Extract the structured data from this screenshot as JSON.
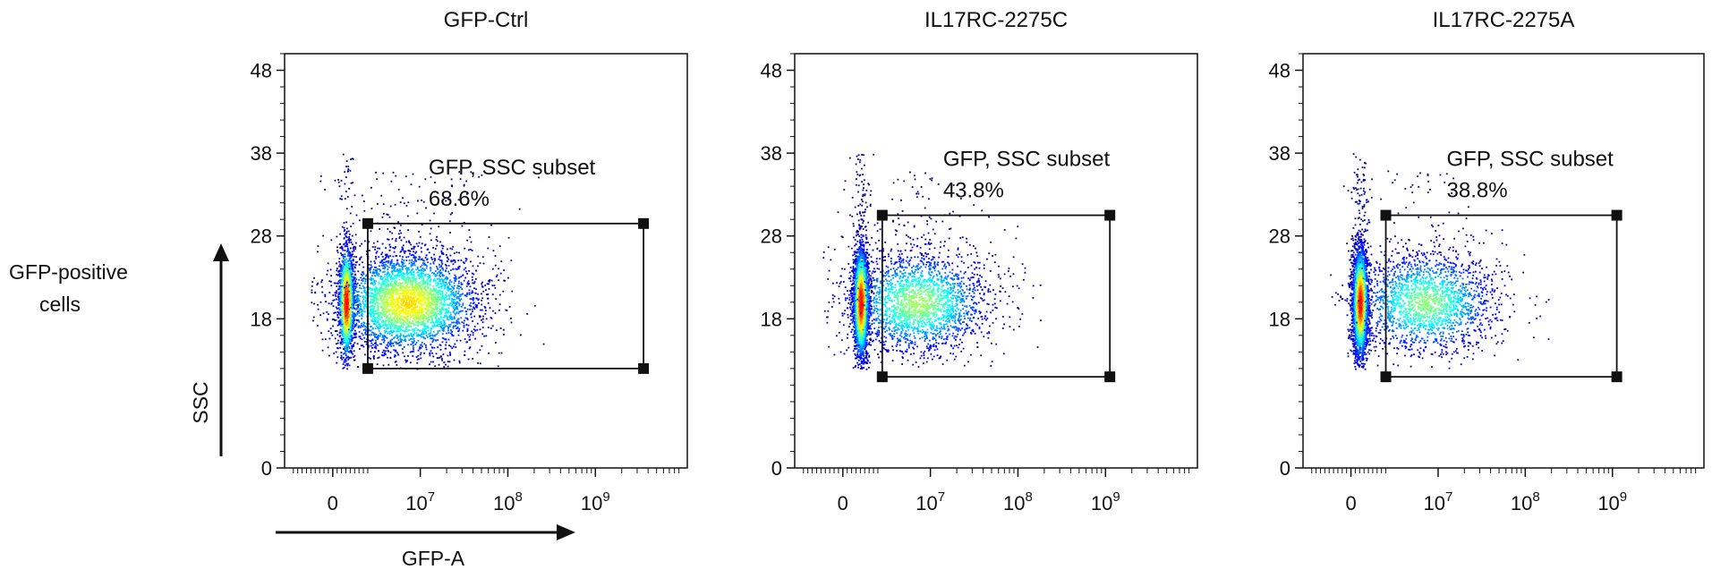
{
  "figure": {
    "row_label_line1": "GFP-positive",
    "row_label_line2": "cells",
    "y_axis_label": "SSC",
    "x_axis_label": "GFP-A"
  },
  "chart_data": [
    {
      "type": "scatter",
      "title": "GFP-Ctrl",
      "y_ticks": [
        "0",
        "18",
        "28",
        "38",
        "48"
      ],
      "y_tick_values": [
        0,
        18,
        28,
        38,
        48
      ],
      "x_ticks": [
        {
          "base": "0",
          "exp": "",
          "value": 0
        },
        {
          "base": "10",
          "exp": "7",
          "value": 1
        },
        {
          "base": "10",
          "exp": "8",
          "value": 2
        },
        {
          "base": "10",
          "exp": "9",
          "value": 3
        }
      ],
      "ylim": [
        0,
        50
      ],
      "gate": {
        "label": "GFP, SSC subset",
        "percent": "68.6%",
        "x": [
          0.4,
          3.55
        ],
        "y": [
          12,
          29.5
        ]
      },
      "density": {
        "neg_x": 0.15,
        "pos_center_x": 0.85,
        "pos_center_y": 20,
        "pos_share": 0.69
      }
    },
    {
      "type": "scatter",
      "title": "IL17RC-2275C",
      "y_ticks": [
        "0",
        "18",
        "28",
        "38",
        "48"
      ],
      "y_tick_values": [
        0,
        18,
        28,
        38,
        48
      ],
      "x_ticks": [
        {
          "base": "0",
          "exp": "",
          "value": 0
        },
        {
          "base": "10",
          "exp": "7",
          "value": 1
        },
        {
          "base": "10",
          "exp": "8",
          "value": 2
        },
        {
          "base": "10",
          "exp": "9",
          "value": 3
        }
      ],
      "ylim": [
        0,
        50
      ],
      "gate": {
        "label": "GFP, SSC subset",
        "percent": "43.8%",
        "x": [
          0.45,
          3.05
        ],
        "y": [
          11,
          30.5
        ]
      },
      "density": {
        "neg_x": 0.2,
        "pos_center_x": 0.85,
        "pos_center_y": 20,
        "pos_share": 0.44
      }
    },
    {
      "type": "scatter",
      "title": "IL17RC-2275A",
      "y_ticks": [
        "0",
        "18",
        "28",
        "38",
        "48"
      ],
      "y_tick_values": [
        0,
        18,
        28,
        38,
        48
      ],
      "x_ticks": [
        {
          "base": "0",
          "exp": "",
          "value": 0
        },
        {
          "base": "10",
          "exp": "7",
          "value": 1
        },
        {
          "base": "10",
          "exp": "8",
          "value": 2
        },
        {
          "base": "10",
          "exp": "9",
          "value": 3
        }
      ],
      "ylim": [
        0,
        50
      ],
      "gate": {
        "label": "GFP, SSC subset",
        "percent": "38.8%",
        "x": [
          0.4,
          3.05
        ],
        "y": [
          11,
          30.5
        ]
      },
      "density": {
        "neg_x": 0.1,
        "pos_center_x": 0.85,
        "pos_center_y": 20,
        "pos_share": 0.39
      }
    }
  ]
}
